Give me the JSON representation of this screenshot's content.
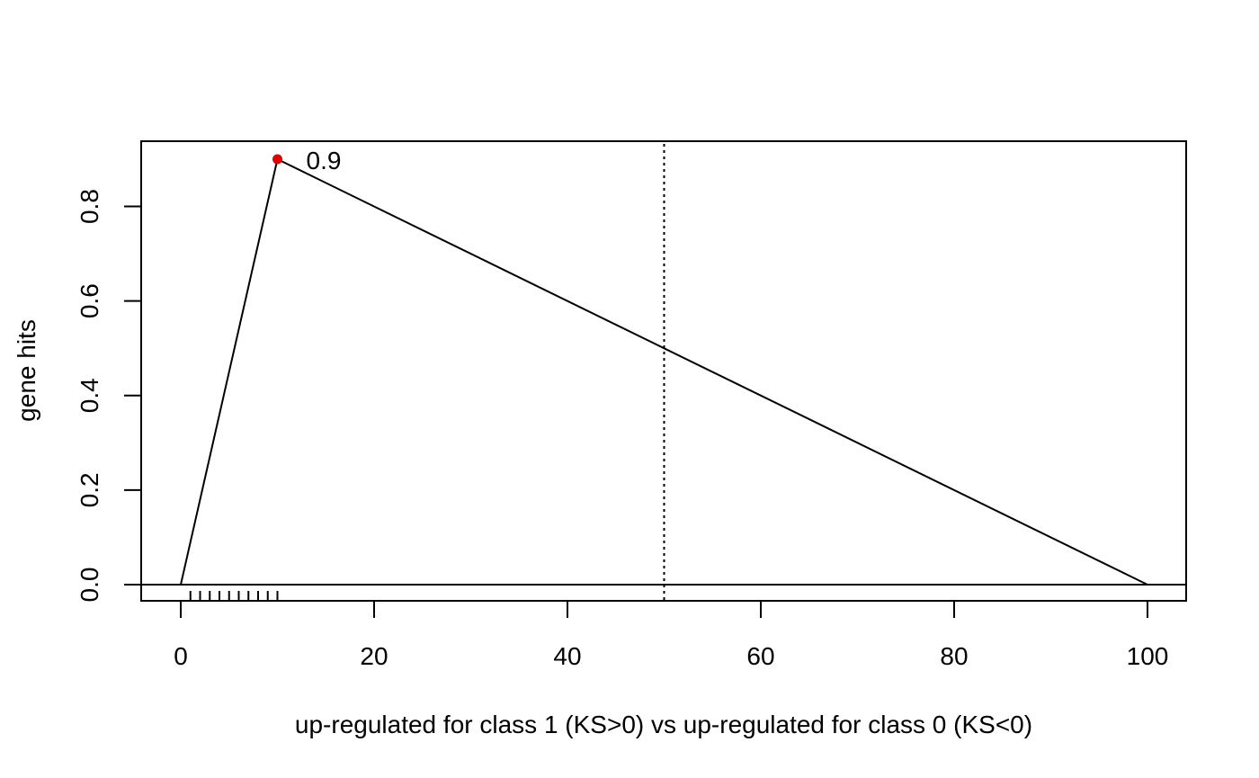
{
  "chart_data": {
    "type": "line",
    "title": "",
    "xlabel": "up-regulated for class 1 (KS>0) vs up-regulated for class 0 (KS<0)",
    "ylabel": "gene hits",
    "xlim": [
      0,
      100
    ],
    "ylim": [
      0,
      0.9
    ],
    "x_ticks": [
      "0",
      "20",
      "40",
      "60",
      "80",
      "100"
    ],
    "y_ticks": [
      "0.0",
      "0.2",
      "0.4",
      "0.6",
      "0.8"
    ],
    "x_tick_values": [
      0,
      20,
      40,
      60,
      80,
      100
    ],
    "y_tick_values": [
      0,
      0.2,
      0.4,
      0.6,
      0.8
    ],
    "series": [
      {
        "x": [
          0,
          10,
          100
        ],
        "y": [
          0,
          0.9,
          0
        ]
      }
    ],
    "peak": {
      "x": 10,
      "y": 0.9,
      "label": "0.9",
      "color": "#e00000"
    },
    "hline_y": 0,
    "vline_x": 50,
    "vline_style": "dotted",
    "rug_x": [
      1,
      2,
      3,
      4,
      5,
      6,
      7,
      8,
      9,
      10
    ],
    "grid": false,
    "legend": "none"
  }
}
